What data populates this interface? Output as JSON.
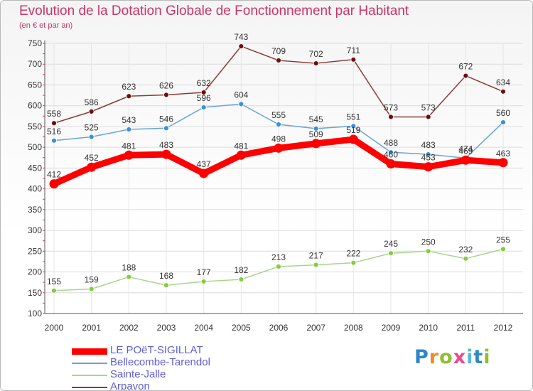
{
  "title": "Evolution de la Dotation Globale de Fonctionnement par Habitant",
  "subtitle": "(en € et par an)",
  "logo": {
    "text": "Proxiti",
    "letter_colors": [
      "#2e86c8",
      "#f08a24",
      "#8fbf2f",
      "#e84c8b",
      "#5bb6e0",
      "#2e86c8",
      "#8fbf2f"
    ]
  },
  "chart_data": {
    "type": "line",
    "title": "Evolution de la Dotation Globale de Fonctionnement par Habitant",
    "subtitle": "(en € et par an)",
    "x": [
      "2000",
      "2001",
      "2002",
      "2003",
      "2004",
      "2005",
      "2006",
      "2007",
      "2008",
      "2009",
      "2010",
      "2011",
      "2012"
    ],
    "ylim": [
      100,
      750
    ],
    "yticks": [
      100,
      150,
      200,
      250,
      300,
      350,
      400,
      450,
      500,
      550,
      600,
      650,
      700,
      750
    ],
    "grid": true,
    "legend_position": "bottom-left",
    "series": [
      {
        "name": "LE POëT-SIGILLAT",
        "color": "#ff0000",
        "marker_color": "#ff0000",
        "emphasis": "thick",
        "values": [
          412,
          452,
          481,
          483,
          437,
          481,
          498,
          509,
          519,
          460,
          453,
          469,
          463
        ],
        "labels": [
          "412",
          "452",
          "481",
          "483",
          "437",
          "481",
          "498",
          "509",
          "519",
          "460",
          "453",
          "469",
          "463"
        ]
      },
      {
        "name": "Bellecombe-Tarendol",
        "color": "#6aa4d6",
        "marker_color": "#3f8fd4",
        "emphasis": "thin",
        "values": [
          516,
          525,
          543,
          546,
          596,
          604,
          555,
          545,
          551,
          488,
          483,
          474,
          560
        ],
        "labels": [
          "516",
          "525",
          "543",
          "546",
          "596",
          "604",
          "555",
          "545",
          "551",
          "488",
          "483",
          "474",
          "560"
        ]
      },
      {
        "name": "Sainte-Jalle",
        "color": "#a6d68a",
        "marker_color": "#84cc40",
        "emphasis": "thin",
        "values": [
          155,
          159,
          188,
          168,
          177,
          182,
          213,
          217,
          222,
          245,
          250,
          232,
          255
        ],
        "labels": [
          "155",
          "159",
          "188",
          "168",
          "177",
          "182",
          "213",
          "217",
          "222",
          "245",
          "250",
          "232",
          "255"
        ]
      },
      {
        "name": "Arpavon",
        "color": "#8b3a3a",
        "marker_color": "#6b1010",
        "emphasis": "thin",
        "values": [
          558,
          586,
          623,
          626,
          632,
          743,
          709,
          702,
          711,
          573,
          573,
          672,
          634
        ],
        "labels": [
          "558",
          "586",
          "623",
          "626",
          "632",
          "743",
          "709",
          "702",
          "711",
          "573",
          "573",
          "672",
          "634"
        ]
      }
    ]
  }
}
